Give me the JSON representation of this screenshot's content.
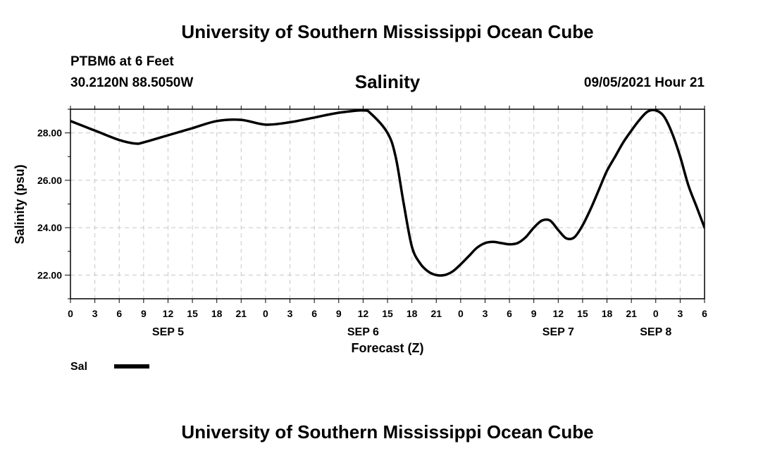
{
  "header": {
    "title": "University of Southern Mississippi Ocean Cube",
    "station": "PTBM6 at 6 Feet",
    "coords": "30.2120N  88.5050W",
    "date_hour": "09/05/2021 Hour 21"
  },
  "footer": {
    "title": "University of Southern Mississippi Ocean Cube"
  },
  "legend": {
    "label": "Sal"
  },
  "colors": {
    "line": "#000000",
    "grid": "#c8c8c8",
    "background": "#ffffff"
  },
  "chart_data": {
    "type": "line",
    "title": "Salinity",
    "xlabel": "Forecast (Z)",
    "ylabel": "Salinity (psu)",
    "xlim": [
      0,
      78
    ],
    "ylim": [
      21,
      29
    ],
    "x_tick_step_hours": 3,
    "x_tick_labels": [
      "0",
      "3",
      "6",
      "9",
      "12",
      "15",
      "18",
      "21",
      "0",
      "3",
      "6",
      "9",
      "12",
      "15",
      "18",
      "21",
      "0",
      "3",
      "6",
      "9",
      "12",
      "15",
      "18",
      "21",
      "0",
      "3",
      "6"
    ],
    "y_ticks": [
      22,
      24,
      26,
      28
    ],
    "y_tick_labels": [
      "22.00",
      "24.00",
      "26.00",
      "28.00"
    ],
    "day_labels": [
      {
        "hour": 12,
        "label": "SEP 5"
      },
      {
        "hour": 36,
        "label": "SEP 6"
      },
      {
        "hour": 60,
        "label": "SEP 7"
      },
      {
        "hour": 72,
        "label": "SEP 8"
      }
    ],
    "grid": true,
    "series": [
      {
        "name": "Sal",
        "x": [
          0,
          3,
          6,
          8,
          9,
          12,
          15,
          18,
          21,
          24,
          27,
          30,
          33,
          36,
          37,
          39,
          40,
          41,
          42,
          43,
          44,
          45,
          46,
          47,
          48,
          49,
          50,
          51,
          52,
          53,
          54,
          55,
          56,
          57,
          58,
          59,
          60,
          61,
          62,
          63,
          64,
          65,
          66,
          67,
          68,
          69,
          70,
          71,
          72,
          73,
          74,
          75,
          76,
          77,
          78
        ],
        "values": [
          28.5,
          28.1,
          27.7,
          27.55,
          27.6,
          27.9,
          28.2,
          28.5,
          28.55,
          28.35,
          28.45,
          28.65,
          28.85,
          28.95,
          28.8,
          28.0,
          27.0,
          25.0,
          23.2,
          22.5,
          22.15,
          22.0,
          22.0,
          22.15,
          22.45,
          22.8,
          23.15,
          23.35,
          23.4,
          23.35,
          23.3,
          23.35,
          23.6,
          24.0,
          24.3,
          24.3,
          23.9,
          23.55,
          23.6,
          24.1,
          24.8,
          25.6,
          26.4,
          27.0,
          27.6,
          28.1,
          28.55,
          28.9,
          28.95,
          28.7,
          28.0,
          27.0,
          25.8,
          24.9,
          24.0
        ]
      }
    ]
  }
}
